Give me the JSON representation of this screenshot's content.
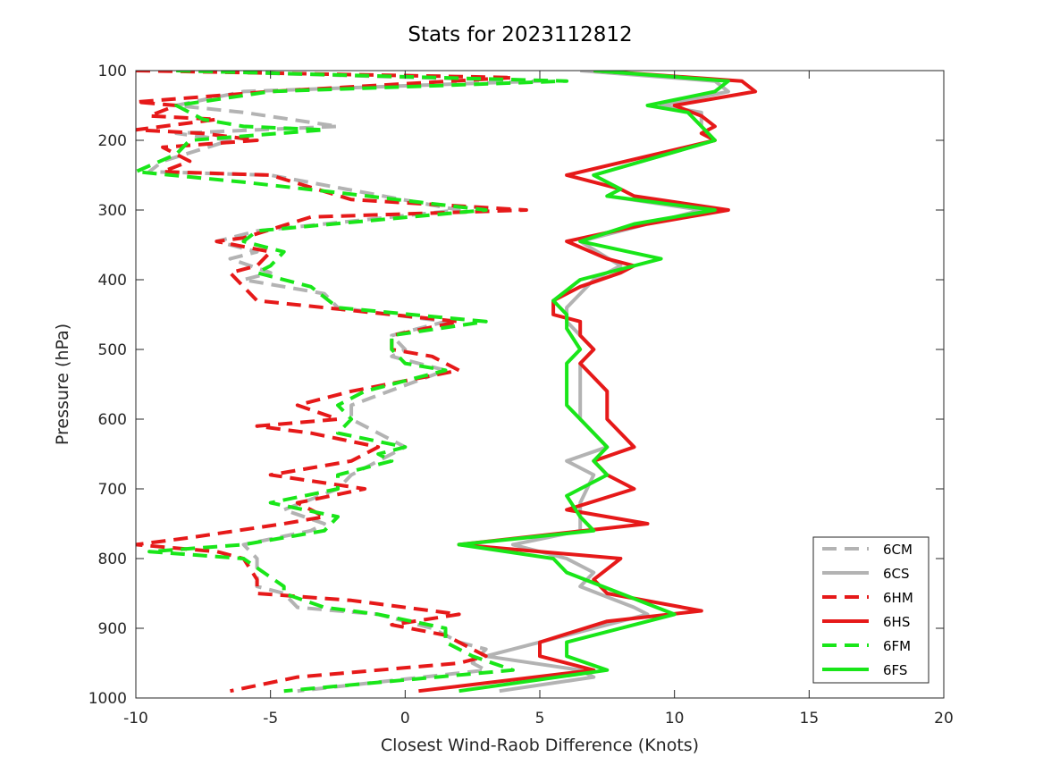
{
  "chart_data": {
    "type": "line",
    "title": "Stats for 2023112812",
    "xlabel": "Closest Wind-Raob Difference (Knots)",
    "ylabel": "Pressure (hPa)",
    "xlim": [
      -10,
      20
    ],
    "ylim": [
      100,
      1000
    ],
    "y_reversed": true,
    "xticks": [
      -10,
      -5,
      0,
      5,
      10,
      15,
      20
    ],
    "yticks": [
      100,
      200,
      300,
      400,
      500,
      600,
      700,
      800,
      900,
      1000
    ],
    "grid": false,
    "legend_position": "bottom-right",
    "series": [
      {
        "name": "6CM",
        "color": "#b3b3b3",
        "style": "dashed",
        "points": [
          [
            -8.5,
            100
          ],
          [
            5.0,
            115
          ],
          [
            -6.0,
            130
          ],
          [
            -8.5,
            150
          ],
          [
            -6.0,
            160
          ],
          [
            -2.5,
            180
          ],
          [
            -8.5,
            190
          ],
          [
            -6.5,
            200
          ],
          [
            -9.0,
            230
          ],
          [
            -9.5,
            245
          ],
          [
            -5.0,
            250
          ],
          [
            2.0,
            300
          ],
          [
            -5.5,
            330
          ],
          [
            -7.0,
            345
          ],
          [
            -5.5,
            360
          ],
          [
            -6.5,
            370
          ],
          [
            -5.0,
            390
          ],
          [
            -6.0,
            400
          ],
          [
            -3.0,
            420
          ],
          [
            -2.5,
            440
          ],
          [
            1.5,
            460
          ],
          [
            -0.5,
            480
          ],
          [
            0.0,
            500
          ],
          [
            -0.5,
            510
          ],
          [
            1.5,
            530
          ],
          [
            -2.0,
            580
          ],
          [
            -2.0,
            600
          ],
          [
            0.0,
            640
          ],
          [
            -2.0,
            680
          ],
          [
            -2.5,
            700
          ],
          [
            -4.5,
            730
          ],
          [
            -3.0,
            750
          ],
          [
            -3.5,
            760
          ],
          [
            -6.0,
            780
          ],
          [
            -5.5,
            800
          ],
          [
            -5.5,
            840
          ],
          [
            -4.5,
            850
          ],
          [
            -4.0,
            870
          ],
          [
            -1.0,
            880
          ],
          [
            1.0,
            900
          ],
          [
            2.0,
            920
          ],
          [
            3.0,
            930
          ],
          [
            2.5,
            950
          ],
          [
            3.0,
            960
          ],
          [
            -4.0,
            990
          ]
        ]
      },
      {
        "name": "6CS",
        "color": "#b3b3b3",
        "style": "solid",
        "points": [
          [
            6.5,
            100
          ],
          [
            11.5,
            115
          ],
          [
            12.0,
            130
          ],
          [
            9.5,
            150
          ],
          [
            11.0,
            160
          ],
          [
            11.0,
            180
          ],
          [
            11.5,
            200
          ],
          [
            7.0,
            250
          ],
          [
            8.0,
            270
          ],
          [
            7.5,
            280
          ],
          [
            11.0,
            300
          ],
          [
            9.0,
            320
          ],
          [
            6.5,
            345
          ],
          [
            8.0,
            380
          ],
          [
            7.0,
            400
          ],
          [
            6.5,
            420
          ],
          [
            6.0,
            440
          ],
          [
            6.0,
            460
          ],
          [
            6.5,
            480
          ],
          [
            7.0,
            500
          ],
          [
            6.5,
            520
          ],
          [
            6.5,
            560
          ],
          [
            6.5,
            600
          ],
          [
            7.5,
            640
          ],
          [
            6.0,
            660
          ],
          [
            7.0,
            680
          ],
          [
            6.5,
            720
          ],
          [
            6.5,
            760
          ],
          [
            4.0,
            780
          ],
          [
            6.0,
            800
          ],
          [
            7.0,
            820
          ],
          [
            6.5,
            840
          ],
          [
            8.5,
            870
          ],
          [
            9.0,
            880
          ],
          [
            8.0,
            890
          ],
          [
            5.0,
            920
          ],
          [
            3.0,
            940
          ],
          [
            6.5,
            960
          ],
          [
            7.0,
            970
          ],
          [
            3.5,
            990
          ]
        ]
      },
      {
        "name": "6HM",
        "color": "#e61919",
        "style": "dashed",
        "points": [
          [
            -10.0,
            100
          ],
          [
            4.0,
            110
          ],
          [
            -5.0,
            130
          ],
          [
            -10.0,
            145
          ],
          [
            -8.5,
            150
          ],
          [
            -9.5,
            165
          ],
          [
            -7.0,
            170
          ],
          [
            -10.0,
            185
          ],
          [
            -7.5,
            190
          ],
          [
            -5.5,
            200
          ],
          [
            -9.0,
            210
          ],
          [
            -8.0,
            230
          ],
          [
            -9.0,
            245
          ],
          [
            -5.0,
            250
          ],
          [
            -2.0,
            285
          ],
          [
            4.5,
            300
          ],
          [
            -3.5,
            310
          ],
          [
            -6.0,
            340
          ],
          [
            -7.0,
            345
          ],
          [
            -5.0,
            360
          ],
          [
            -5.5,
            380
          ],
          [
            -6.5,
            390
          ],
          [
            -6.0,
            410
          ],
          [
            -5.5,
            430
          ],
          [
            -0.5,
            450
          ],
          [
            2.0,
            460
          ],
          [
            -0.5,
            480
          ],
          [
            -0.5,
            500
          ],
          [
            1.0,
            510
          ],
          [
            2.0,
            530
          ],
          [
            -2.0,
            560
          ],
          [
            -4.0,
            580
          ],
          [
            -2.5,
            600
          ],
          [
            -5.5,
            610
          ],
          [
            -3.5,
            620
          ],
          [
            -1.0,
            640
          ],
          [
            -2.0,
            660
          ],
          [
            -5.0,
            680
          ],
          [
            -1.5,
            700
          ],
          [
            -4.0,
            720
          ],
          [
            -3.0,
            740
          ],
          [
            -4.5,
            750
          ],
          [
            -8.0,
            770
          ],
          [
            -10.0,
            780
          ],
          [
            -7.0,
            790
          ],
          [
            -6.0,
            800
          ],
          [
            -5.5,
            830
          ],
          [
            -5.5,
            850
          ],
          [
            -2.0,
            860
          ],
          [
            2.0,
            880
          ],
          [
            -0.5,
            895
          ],
          [
            1.5,
            910
          ],
          [
            2.5,
            930
          ],
          [
            3.0,
            940
          ],
          [
            2.0,
            950
          ],
          [
            -4.0,
            970
          ],
          [
            -6.5,
            990
          ]
        ]
      },
      {
        "name": "6HS",
        "color": "#e61919",
        "style": "solid",
        "points": [
          [
            7.0,
            100
          ],
          [
            12.5,
            115
          ],
          [
            13.0,
            130
          ],
          [
            10.0,
            150
          ],
          [
            11.0,
            165
          ],
          [
            11.5,
            180
          ],
          [
            11.0,
            190
          ],
          [
            11.5,
            200
          ],
          [
            6.0,
            250
          ],
          [
            8.0,
            270
          ],
          [
            8.5,
            280
          ],
          [
            12.0,
            300
          ],
          [
            9.0,
            320
          ],
          [
            6.0,
            345
          ],
          [
            7.5,
            370
          ],
          [
            8.5,
            380
          ],
          [
            8.0,
            390
          ],
          [
            6.5,
            410
          ],
          [
            5.5,
            430
          ],
          [
            5.5,
            450
          ],
          [
            6.5,
            460
          ],
          [
            6.5,
            480
          ],
          [
            7.0,
            500
          ],
          [
            6.5,
            520
          ],
          [
            7.5,
            560
          ],
          [
            7.5,
            600
          ],
          [
            8.5,
            640
          ],
          [
            7.0,
            660
          ],
          [
            7.5,
            680
          ],
          [
            8.5,
            700
          ],
          [
            6.0,
            730
          ],
          [
            9.0,
            750
          ],
          [
            2.0,
            780
          ],
          [
            8.0,
            800
          ],
          [
            7.0,
            830
          ],
          [
            7.5,
            850
          ],
          [
            11.0,
            875
          ],
          [
            7.5,
            890
          ],
          [
            5.0,
            920
          ],
          [
            5.0,
            940
          ],
          [
            7.0,
            960
          ],
          [
            0.5,
            990
          ]
        ]
      },
      {
        "name": "6FM",
        "color": "#19e619",
        "style": "dashed",
        "points": [
          [
            -8.5,
            100
          ],
          [
            6.0,
            115
          ],
          [
            -5.0,
            130
          ],
          [
            -8.5,
            150
          ],
          [
            -7.5,
            170
          ],
          [
            -6.0,
            180
          ],
          [
            -3.0,
            185
          ],
          [
            -8.0,
            200
          ],
          [
            -8.5,
            220
          ],
          [
            -10.0,
            245
          ],
          [
            -6.0,
            260
          ],
          [
            -2.5,
            275
          ],
          [
            3.0,
            300
          ],
          [
            -5.5,
            330
          ],
          [
            -6.0,
            345
          ],
          [
            -4.5,
            360
          ],
          [
            -5.0,
            380
          ],
          [
            -5.5,
            390
          ],
          [
            -3.5,
            410
          ],
          [
            -2.5,
            440
          ],
          [
            3.0,
            460
          ],
          [
            -0.5,
            480
          ],
          [
            -0.5,
            500
          ],
          [
            0.0,
            520
          ],
          [
            1.5,
            530
          ],
          [
            -1.5,
            560
          ],
          [
            -2.5,
            580
          ],
          [
            -2.0,
            600
          ],
          [
            -2.5,
            620
          ],
          [
            0.0,
            640
          ],
          [
            -1.0,
            650
          ],
          [
            -0.5,
            660
          ],
          [
            -2.5,
            680
          ],
          [
            -2.5,
            700
          ],
          [
            -5.0,
            720
          ],
          [
            -2.5,
            740
          ],
          [
            -3.0,
            760
          ],
          [
            -6.0,
            780
          ],
          [
            -9.5,
            790
          ],
          [
            -6.0,
            800
          ],
          [
            -4.5,
            840
          ],
          [
            -4.5,
            850
          ],
          [
            -3.0,
            870
          ],
          [
            -1.0,
            880
          ],
          [
            1.5,
            900
          ],
          [
            1.5,
            920
          ],
          [
            2.5,
            940
          ],
          [
            4.0,
            960
          ],
          [
            -4.5,
            990
          ]
        ]
      },
      {
        "name": "6FS",
        "color": "#19e619",
        "style": "solid",
        "points": [
          [
            7.0,
            100
          ],
          [
            12.0,
            115
          ],
          [
            11.5,
            130
          ],
          [
            9.0,
            150
          ],
          [
            10.5,
            160
          ],
          [
            11.0,
            180
          ],
          [
            11.5,
            200
          ],
          [
            7.0,
            250
          ],
          [
            8.0,
            270
          ],
          [
            7.5,
            280
          ],
          [
            11.5,
            300
          ],
          [
            8.5,
            320
          ],
          [
            6.5,
            345
          ],
          [
            9.5,
            370
          ],
          [
            6.5,
            400
          ],
          [
            5.5,
            430
          ],
          [
            6.0,
            450
          ],
          [
            6.0,
            470
          ],
          [
            6.5,
            500
          ],
          [
            6.0,
            520
          ],
          [
            6.0,
            560
          ],
          [
            6.0,
            580
          ],
          [
            7.0,
            620
          ],
          [
            7.5,
            640
          ],
          [
            7.0,
            660
          ],
          [
            7.5,
            680
          ],
          [
            6.0,
            710
          ],
          [
            6.5,
            740
          ],
          [
            7.0,
            760
          ],
          [
            2.0,
            780
          ],
          [
            5.5,
            800
          ],
          [
            6.0,
            820
          ],
          [
            8.0,
            850
          ],
          [
            10.0,
            880
          ],
          [
            6.0,
            920
          ],
          [
            6.0,
            940
          ],
          [
            7.5,
            960
          ],
          [
            2.0,
            990
          ]
        ]
      }
    ]
  }
}
